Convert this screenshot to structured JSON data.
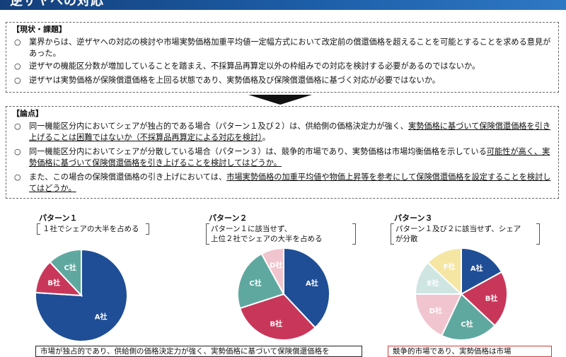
{
  "header": {
    "title": "逆ザヤへの対応"
  },
  "current_state": {
    "heading": "【現状・課題】",
    "items": [
      "業界からは、逆ザヤへの対応の検討や市場実勢価格加重平均値一定幅方式において改定前の償還価格を超えることを可能とすることを求める意見があった。",
      "逆ザヤの機能区分数が増加していることを踏まえ、不採算品再算定以外の枠組みでの対応を検討する必要があるのではないか。",
      "逆ザヤは実勢価格が保険償還価格を上回る状態であり、実勢価格及び保険償還価格に基づく対応が必要ではないか。"
    ]
  },
  "issues": {
    "heading": "【論点】",
    "item1_a": "同一機能区分内においてシェアが独占的である場合（パターン１及び２）は、供給側の価格決定力が強く、",
    "item1_b": "実勢価格に基づいて保険償還価格を引き上げることは困難ではないか（不採算品再算定による対応を検討）",
    "item1_c": "。",
    "item2_a": "同一機能区分内においてシェアが分散している場合（パターン３）は、競争的市場であり、実勢価格は市場均衡価格を示している",
    "item2_b": "可能性が高く、実勢価格に基づいて保険償還価格を引き上げることを検討してはどうか。",
    "item3_a": "また、この場合の保険償還価格の引き上げにおいては、",
    "item3_b": "市場実勢価格の加重平均値や物価上昇等を参考にして保険償還価格を設定することを検討してはどうか。"
  },
  "patterns": [
    {
      "title": "パターン１",
      "desc_lines": [
        "１社でシェアの大半を占める"
      ]
    },
    {
      "title": "パターン２",
      "desc_lines": [
        "パターン１に該当せず、",
        "上位２社でシェアの大半を占める"
      ]
    },
    {
      "title": "パターン３",
      "desc_lines": [
        "パターン１及び２に該当せず、シェア",
        "が分散"
      ]
    }
  ],
  "chart_data": [
    {
      "type": "pie",
      "slices": [
        {
          "label": "A社",
          "value": 76,
          "color": "#1f4e96"
        },
        {
          "label": "B社",
          "value": 12,
          "color": "#c8375a"
        },
        {
          "label": "C社",
          "value": 12,
          "color": "#5fa8a0"
        }
      ]
    },
    {
      "type": "pie",
      "slices": [
        {
          "label": "A社",
          "value": 38,
          "color": "#1f4e96"
        },
        {
          "label": "B社",
          "value": 32,
          "color": "#c8375a"
        },
        {
          "label": "C社",
          "value": 22,
          "color": "#5fa8a0"
        },
        {
          "label": "D社",
          "value": 8,
          "color": "#f1c5cf"
        }
      ]
    },
    {
      "type": "pie",
      "slices": [
        {
          "label": "A社",
          "value": 17,
          "color": "#1f4e96"
        },
        {
          "label": "B社",
          "value": 20,
          "color": "#c8375a"
        },
        {
          "label": "C社",
          "value": 20,
          "color": "#5fa8a0"
        },
        {
          "label": "D社",
          "value": 18,
          "color": "#f1c5cf"
        },
        {
          "label": "E社",
          "value": 12,
          "color": "#cfe5e2"
        },
        {
          "label": "F社",
          "value": 13,
          "color": "#f6e6a4"
        }
      ]
    }
  ],
  "bottom_notes": [
    "市場が独占的であり、供給側の価格決定力が強く、実勢価格に基づいて保険償還価格を",
    "競争的市場であり、実勢価格は市場"
  ],
  "colors": {
    "title_bar": "#1d5ea8",
    "bottom_box2_border": "#d23a3a"
  }
}
